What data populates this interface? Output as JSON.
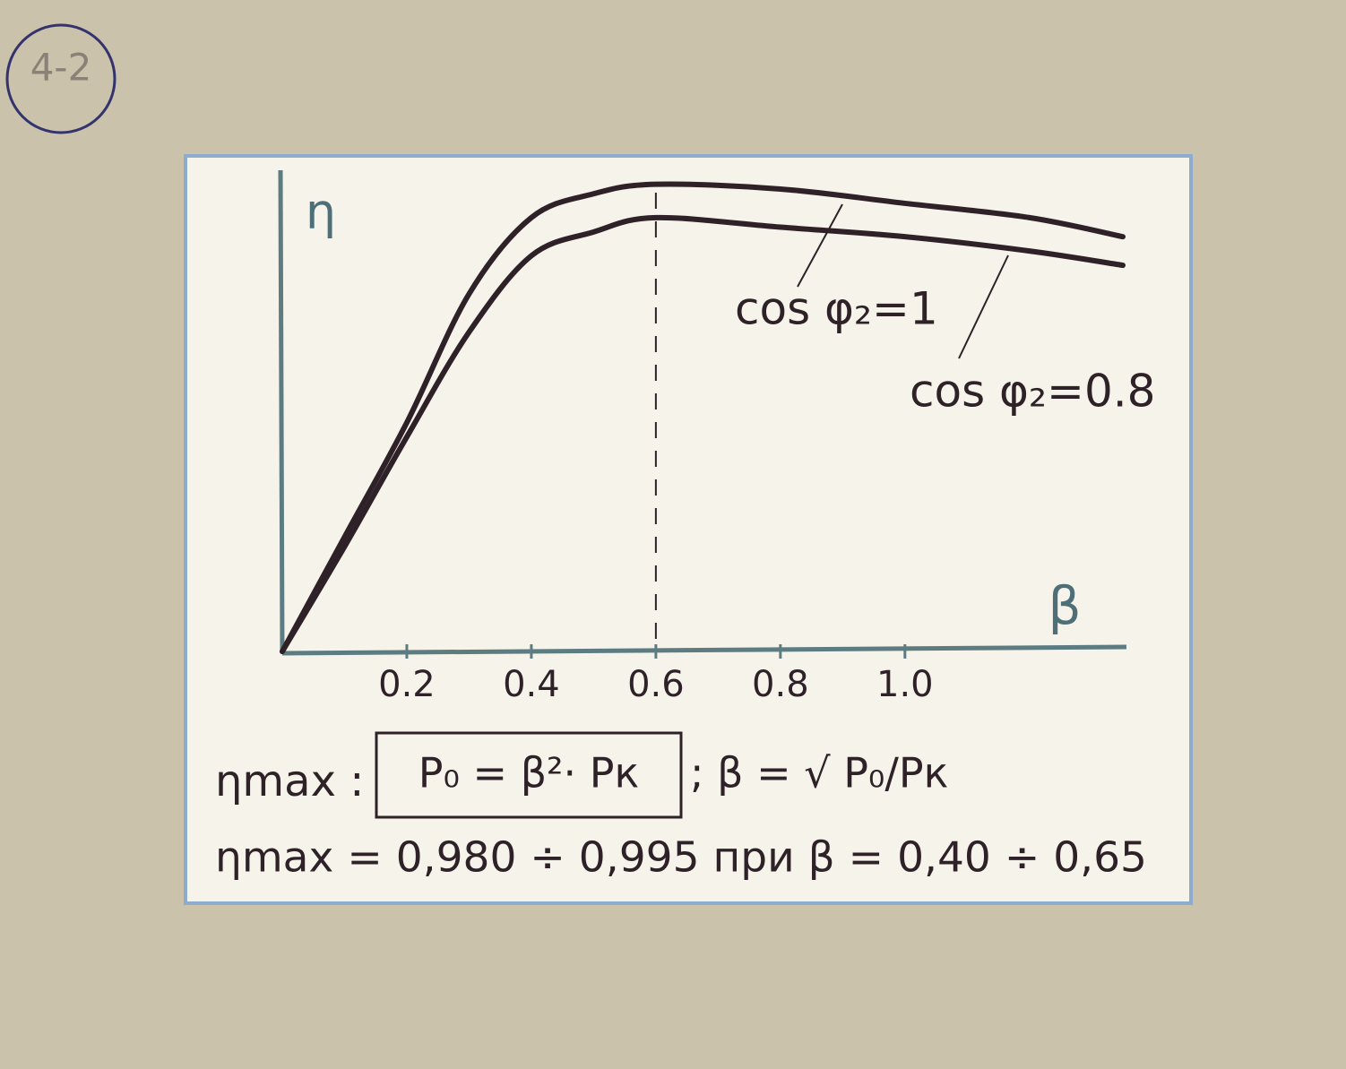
{
  "page_label": "4-2",
  "chart_data": {
    "type": "line",
    "x_label": "β",
    "y_label": "η",
    "x": [
      0,
      0.1,
      0.2,
      0.3,
      0.4,
      0.5,
      0.6,
      0.8,
      1.0,
      1.2,
      1.35
    ],
    "series": [
      {
        "name": "cos φ₂=1",
        "color": "#2e2228",
        "values": [
          0,
          0.24,
          0.48,
          0.75,
          0.91,
          0.96,
          0.98,
          0.97,
          0.94,
          0.91,
          0.87
        ]
      },
      {
        "name": "cos φ₂=0.8",
        "color": "#2e2228",
        "values": [
          0,
          0.22,
          0.45,
          0.67,
          0.83,
          0.88,
          0.91,
          0.89,
          0.87,
          0.84,
          0.81
        ]
      }
    ],
    "xlim": [
      0,
      1.35
    ],
    "ylim": [
      0,
      1
    ],
    "xticks": [
      0.2,
      0.4,
      0.6,
      0.8,
      {
        "value": 1,
        "label": "1.0"
      }
    ],
    "dashed_line_x": 0.6,
    "formulas": [
      "ηmax :",
      "P₀ = β²· Pк",
      "; β = √ P₀/Pк",
      "ηmax = 0,980 ÷ 0,995  при  β = 0,40 ÷ 0,65"
    ]
  }
}
